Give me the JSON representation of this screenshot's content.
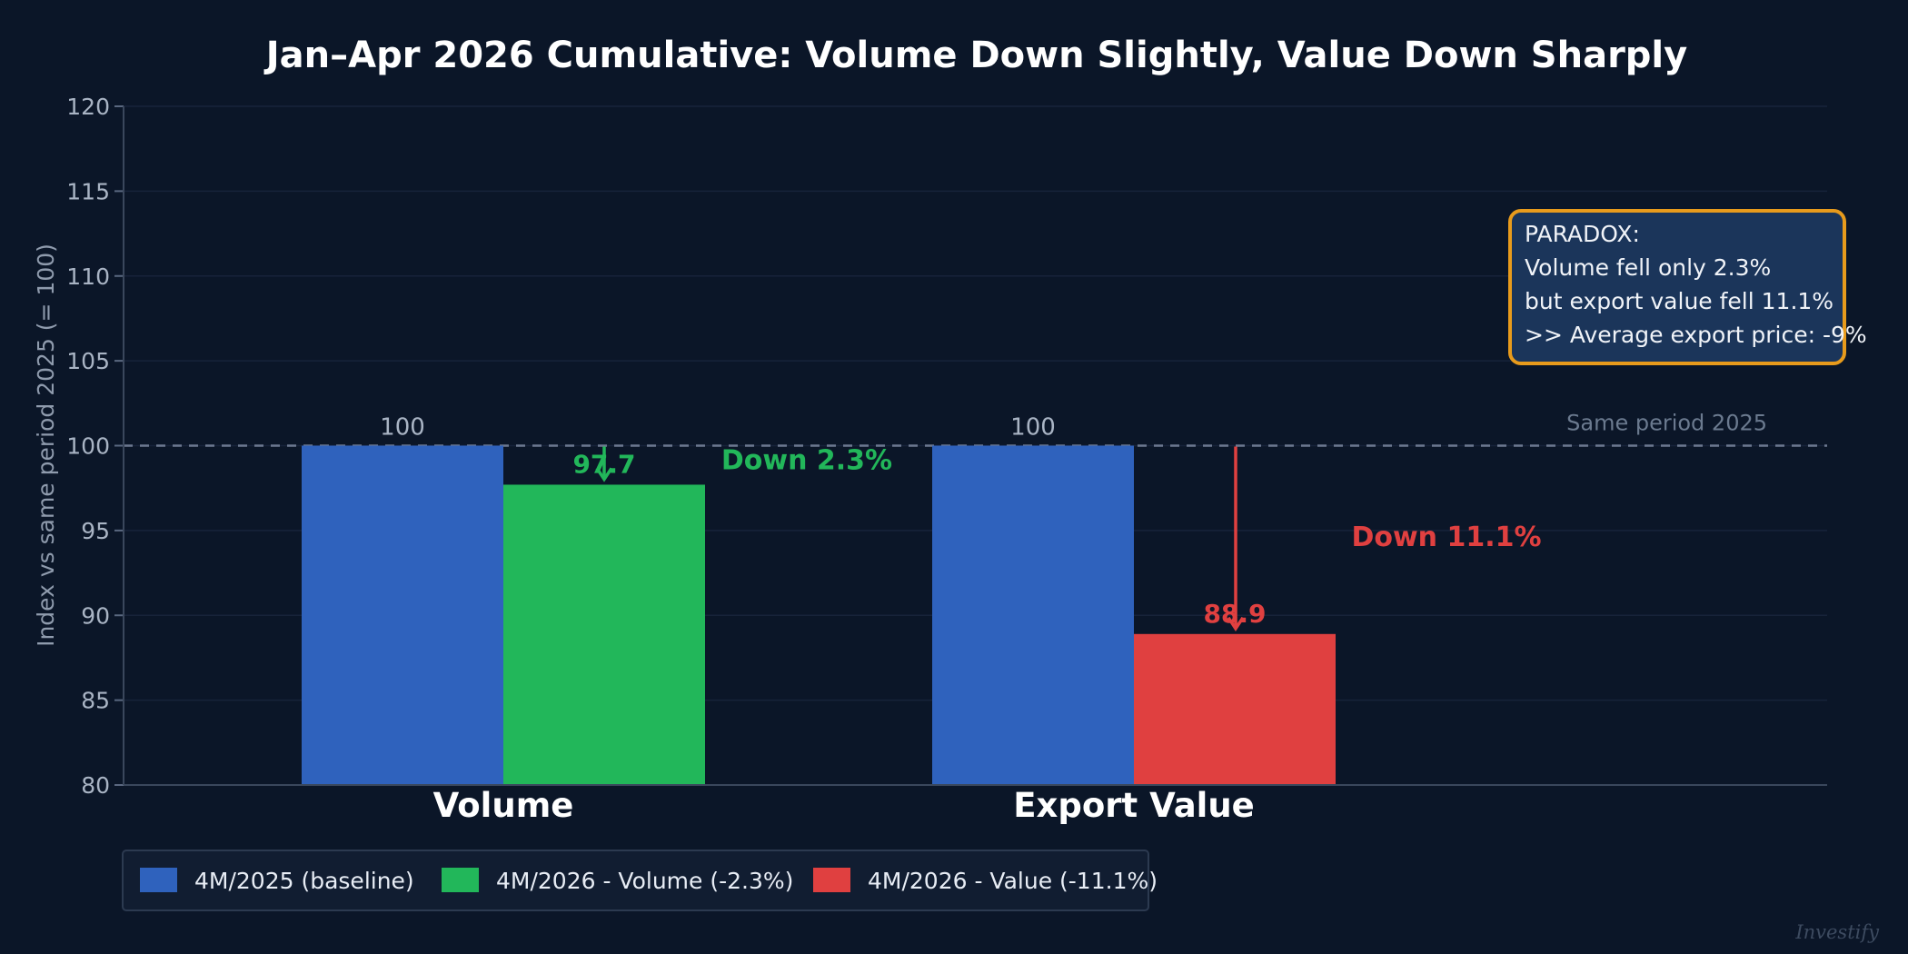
{
  "chart_data": {
    "type": "bar",
    "title": "Jan–Apr 2026 Cumulative: Volume Down Slightly, Value Down Sharply",
    "ylabel": "Index vs same period 2025 (= 100)",
    "xlabel": "",
    "ylim": [
      80,
      120
    ],
    "yticks": [
      "80",
      "85",
      "90",
      "95",
      "100",
      "105",
      "110",
      "115",
      "120"
    ],
    "grid": true,
    "categories": [
      "Volume",
      "Export Value"
    ],
    "groups": [
      {
        "category": "Volume",
        "baseline": {
          "value": 100,
          "label": "100",
          "color": "#2f62bd"
        },
        "current": {
          "value": 97.7,
          "label": "97.7",
          "color": "#22b75a",
          "series": "4M/2026 - Volume (-2.3%)"
        },
        "change_label": "Down 2.3%",
        "change_color": "#22b75a"
      },
      {
        "category": "Export Value",
        "baseline": {
          "value": 100,
          "label": "100",
          "color": "#2f62bd"
        },
        "current": {
          "value": 88.9,
          "label": "88.9",
          "color": "#e04040",
          "series": "4M/2026 - Value (-11.1%)"
        },
        "change_label": "Down 11.1%",
        "change_color": "#e04040"
      }
    ],
    "reference_line": {
      "value": 100,
      "label": "Same period 2025",
      "style": "dashed"
    },
    "legend": {
      "placement": "bottom-left",
      "entries": [
        {
          "label": "4M/2025 (baseline)",
          "color": "#2f62bd"
        },
        {
          "label": "4M/2026 - Volume (-2.3%)",
          "color": "#22b75a"
        },
        {
          "label": "4M/2026 - Value (-11.1%)",
          "color": "#e04040"
        }
      ]
    },
    "annotation_box": {
      "lines": [
        "PARADOX:",
        "Volume fell only 2.3%",
        "but export value fell 11.1%",
        ">> Average export price: -9%"
      ],
      "border_color": "#e89b1c",
      "fill_color": "#1b355a"
    }
  },
  "watermark": "Investify"
}
